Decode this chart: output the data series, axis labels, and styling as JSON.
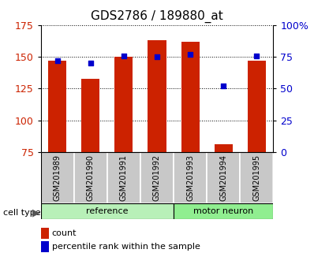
{
  "title": "GDS2786 / 189880_at",
  "samples": [
    "GSM201989",
    "GSM201990",
    "GSM201991",
    "GSM201992",
    "GSM201993",
    "GSM201994",
    "GSM201995"
  ],
  "counts": [
    147,
    133,
    150,
    163,
    162,
    81,
    147
  ],
  "percentiles": [
    72,
    70,
    76,
    75,
    77,
    52,
    76
  ],
  "groups": [
    {
      "label": "reference",
      "start": 0,
      "end": 4,
      "color": "#b8f0b8"
    },
    {
      "label": "motor neuron",
      "start": 4,
      "end": 7,
      "color": "#90ee90"
    }
  ],
  "ylim_left": [
    75,
    175
  ],
  "ylim_right": [
    0,
    100
  ],
  "yticks_left": [
    75,
    100,
    125,
    150,
    175
  ],
  "yticks_right": [
    0,
    25,
    50,
    75,
    100
  ],
  "ytick_labels_right": [
    "0",
    "25",
    "50",
    "75",
    "100%"
  ],
  "bar_color": "#cc2200",
  "dot_color": "#0000cc",
  "bar_width": 0.55,
  "left_tick_color": "#cc2200",
  "right_tick_color": "#0000cc",
  "grid_color": "#000000",
  "legend_count_label": "count",
  "legend_pct_label": "percentile rank within the sample",
  "cell_type_label": "cell type",
  "sample_box_color": "#c8c8c8"
}
